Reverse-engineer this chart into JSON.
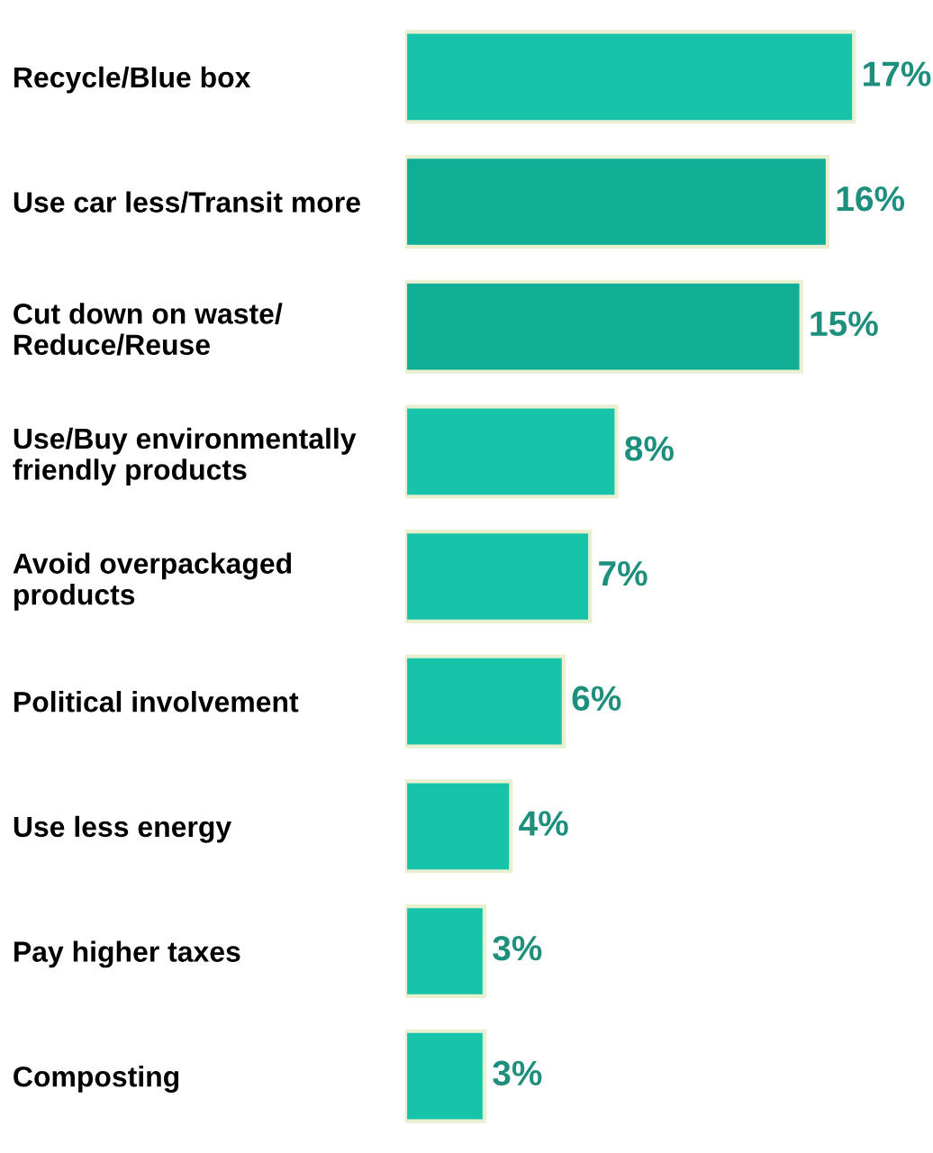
{
  "chart_data": {
    "type": "bar",
    "orientation": "horizontal",
    "categories": [
      "Recycle/Blue box",
      "Use car less/Transit more",
      "Cut down on waste/\nReduce/Reuse",
      "Use/Buy environmentally\nfriendly products",
      "Avoid overpackaged\nproducts",
      "Political involvement",
      "Use less energy",
      "Pay higher taxes",
      "Composting"
    ],
    "values": [
      17,
      16,
      15,
      8,
      7,
      6,
      4,
      3,
      3
    ],
    "colors": [
      "#17c4a9",
      "#0fae95",
      "#0fae95",
      "#17c4a9",
      "#17c4a9",
      "#17c4a9",
      "#17c4a9",
      "#17c4a9",
      "#17c4a9"
    ],
    "value_labels": [
      "17%",
      "16%",
      "15%",
      "8%",
      "7%",
      "6%",
      "4%",
      "3%",
      "3%"
    ],
    "tick_labels": "y",
    "grid": false,
    "legend": false
  }
}
